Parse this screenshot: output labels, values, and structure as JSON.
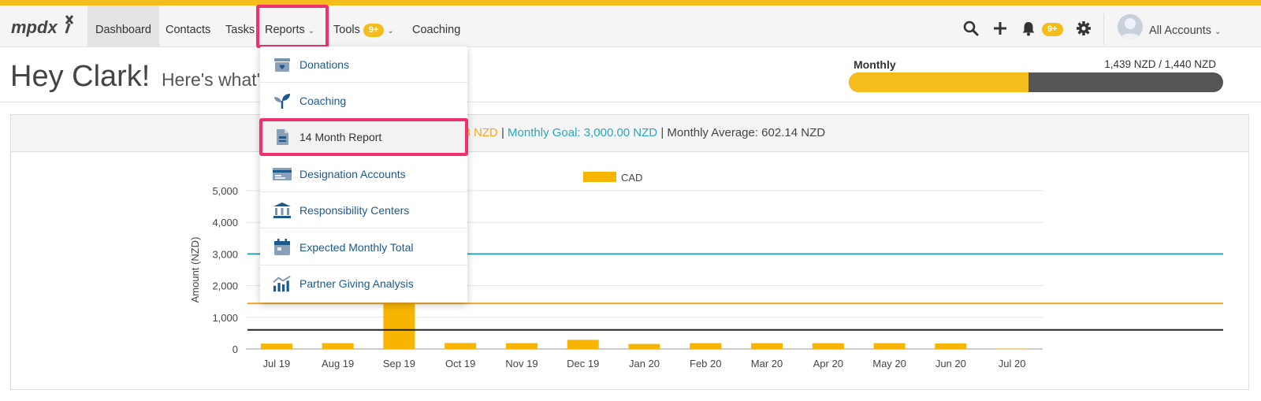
{
  "app": {
    "logo_text": "mpdx",
    "accent_color": "#f5bd1c",
    "highlight_color": "#f0316d"
  },
  "nav": {
    "dashboard": "Dashboard",
    "contacts": "Contacts",
    "tasks": "Tasks",
    "reports": "Reports",
    "tools": "Tools",
    "tools_badge": "9+",
    "coaching": "Coaching",
    "notifications_badge": "9+",
    "account": "All Accounts"
  },
  "greeting": {
    "title": "Hey Clark!",
    "subtitle": "Here's what's h"
  },
  "goal": {
    "label": "Monthly",
    "values": "1,439 NZD / 1,440 NZD",
    "progress": 0.48
  },
  "summary": {
    "received": "439.58 NZD",
    "sep1": "|",
    "goal": "Monthly Goal: 3,000.00 NZD",
    "sep2": "|",
    "average": "Monthly Average: 602.14 NZD"
  },
  "reports_menu": {
    "items": [
      {
        "label": "Donations",
        "icon": "donation-box-icon"
      },
      {
        "label": "Coaching",
        "icon": "sprout-icon"
      },
      {
        "label": "14 Month Report",
        "icon": "document-icon"
      },
      {
        "label": "Designation Accounts",
        "icon": "card-icon"
      },
      {
        "label": "Responsibility Centers",
        "icon": "bank-icon"
      },
      {
        "label": "Expected Monthly Total",
        "icon": "calendar-icon"
      },
      {
        "label": "Partner Giving Analysis",
        "icon": "bar-chart-icon"
      }
    ]
  },
  "chart_data": {
    "type": "bar",
    "title": "",
    "xlabel": "",
    "ylabel": "Amount (NZD)",
    "ylim": [
      0,
      5000
    ],
    "yticks": [
      "0",
      "1,000",
      "2,000",
      "3,000",
      "4,000",
      "5,000"
    ],
    "categories": [
      "Jul 19",
      "Aug 19",
      "Sep 19",
      "Oct 19",
      "Nov 19",
      "Dec 19",
      "Jan 20",
      "Feb 20",
      "Mar 20",
      "Apr 20",
      "May 20",
      "Jun 20",
      "Jul 20"
    ],
    "series": [
      {
        "name": "CAD",
        "color": "#f7b500",
        "values": [
          170,
          185,
          1500,
          190,
          185,
          290,
          160,
          185,
          185,
          185,
          185,
          175,
          10
        ]
      }
    ],
    "reference_lines": [
      {
        "value": 3000,
        "color": "#2ba7b8"
      },
      {
        "value": 1440,
        "color": "#f5a623"
      },
      {
        "value": 602,
        "color": "#222222"
      }
    ],
    "legend": "top-center",
    "grid": true
  }
}
